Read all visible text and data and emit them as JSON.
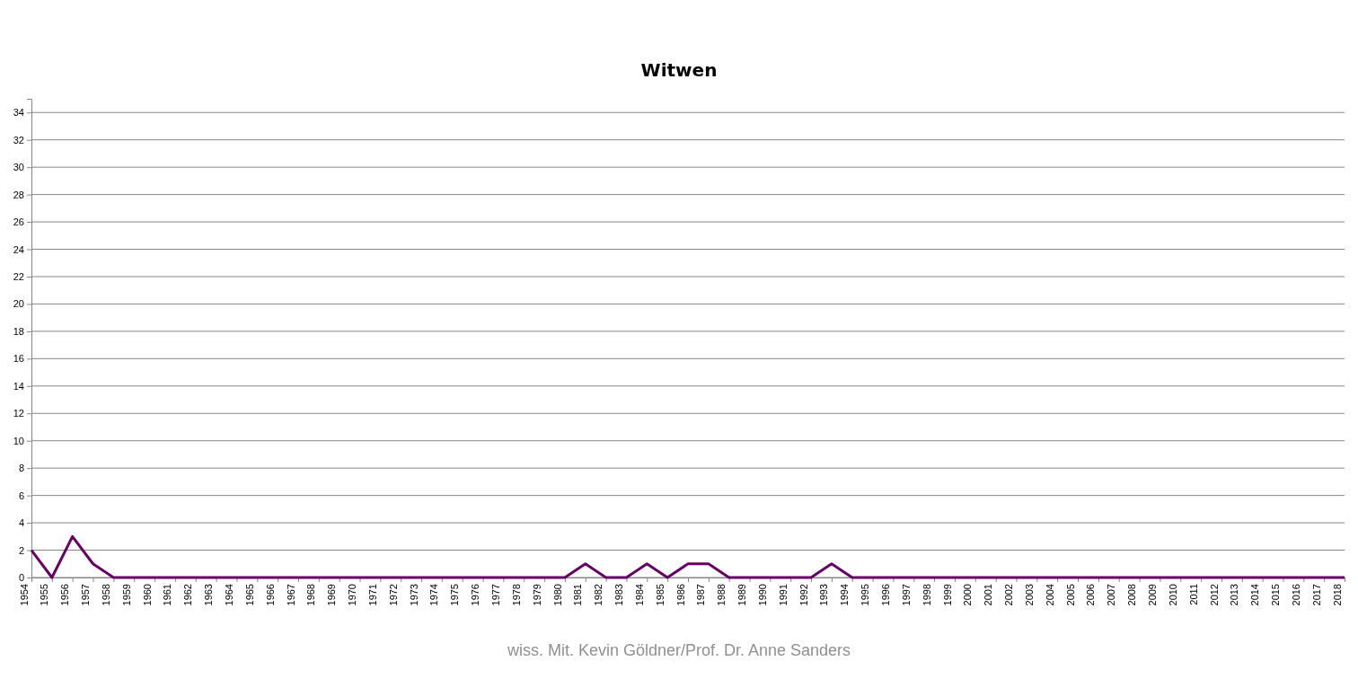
{
  "chart_data": {
    "type": "line",
    "title": "Witwen",
    "categories": [
      "1954",
      "1955",
      "1956",
      "1957",
      "1958",
      "1959",
      "1960",
      "1961",
      "1962",
      "1963",
      "1964",
      "1965",
      "1966",
      "1967",
      "1968",
      "1969",
      "1970",
      "1971",
      "1972",
      "1973",
      "1974",
      "1975",
      "1976",
      "1977",
      "1978",
      "1979",
      "1980",
      "1981",
      "1982",
      "1983",
      "1984",
      "1985",
      "1986",
      "1987",
      "1988",
      "1989",
      "1990",
      "1991",
      "1992",
      "1993",
      "1994",
      "1995",
      "1996",
      "1997",
      "1998",
      "1999",
      "2000",
      "2001",
      "2002",
      "2003",
      "2004",
      "2005",
      "2006",
      "2007",
      "2008",
      "2009",
      "2010",
      "2011",
      "2012",
      "2013",
      "2014",
      "2015",
      "2016",
      "2017",
      "2018"
    ],
    "series": [
      {
        "color": "#660066",
        "values": [
          2,
          0,
          3,
          1,
          0,
          0,
          0,
          0,
          0,
          0,
          0,
          0,
          0,
          0,
          0,
          0,
          0,
          0,
          0,
          0,
          0,
          0,
          0,
          0,
          0,
          0,
          0,
          1,
          0,
          0,
          1,
          0,
          1,
          1,
          0,
          0,
          0,
          0,
          0,
          1,
          0,
          0,
          0,
          0,
          0,
          0,
          0,
          0,
          0,
          0,
          0,
          0,
          0,
          0,
          0,
          0,
          0,
          0,
          0,
          0,
          0,
          0,
          0,
          0,
          0
        ]
      }
    ],
    "ylim": [
      0,
      35
    ],
    "yticks": [
      0,
      2,
      4,
      6,
      8,
      10,
      12,
      14,
      16,
      18,
      20,
      22,
      24,
      26,
      28,
      30,
      32,
      34
    ],
    "grid": "y",
    "marker": "none",
    "line_style": "solid",
    "annotations": [
      "wiss. Mit. Kevin Göldner/Prof. Dr. Anne Sanders"
    ]
  }
}
